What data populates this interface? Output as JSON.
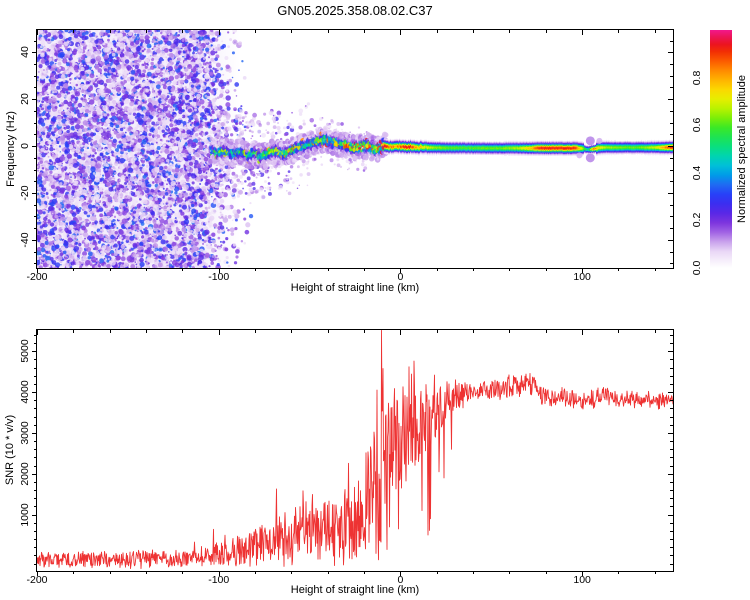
{
  "title": "GN05.2025.358.08.02.C37",
  "colors": {
    "background": "#FFFFFF",
    "axis": "#000000",
    "snr_line": "#EE3333"
  },
  "colormap_stops": [
    [
      0.0,
      "#FFFFFF"
    ],
    [
      0.03,
      "#F6EFFB"
    ],
    [
      0.07,
      "#E9D7F6"
    ],
    [
      0.11,
      "#C9A2EC"
    ],
    [
      0.15,
      "#A163E4"
    ],
    [
      0.19,
      "#7D35DE"
    ],
    [
      0.23,
      "#5A28E6"
    ],
    [
      0.27,
      "#3C2EF0"
    ],
    [
      0.31,
      "#2741F8"
    ],
    [
      0.35,
      "#1F6BF2"
    ],
    [
      0.39,
      "#009BE8"
    ],
    [
      0.43,
      "#00BFD8"
    ],
    [
      0.47,
      "#00D4B0"
    ],
    [
      0.51,
      "#0ADF7E"
    ],
    [
      0.55,
      "#1EE352"
    ],
    [
      0.59,
      "#3BE926"
    ],
    [
      0.63,
      "#7BEE08"
    ],
    [
      0.67,
      "#B9F200"
    ],
    [
      0.71,
      "#E6EE00"
    ],
    [
      0.75,
      "#FBD800"
    ],
    [
      0.79,
      "#FFB300"
    ],
    [
      0.83,
      "#FF8A00"
    ],
    [
      0.87,
      "#FB5A00"
    ],
    [
      0.91,
      "#F22E04"
    ],
    [
      0.94,
      "#EC1420"
    ],
    [
      0.97,
      "#EC1454"
    ],
    [
      1.0,
      "#F2188C"
    ]
  ],
  "chart_data": [
    {
      "type": "heatmap",
      "title": "GN05.2025.358.08.02.C37",
      "xlabel": "Height of straight line (km)",
      "ylabel": "Frequency (Hz)",
      "xlim": [
        -200,
        150
      ],
      "ylim": [
        -52,
        49.5
      ],
      "x_major_ticks": [
        -200,
        -100,
        0,
        100
      ],
      "x_minor_step": 20,
      "y_major_ticks": [
        40,
        20,
        0,
        -20,
        -40
      ],
      "y_minor_step": 5,
      "grid": false,
      "colorbar": {
        "label": "Normalized spectral amplitude",
        "tick_labels": [
          "0.0",
          "0.2",
          "0.4",
          "0.6",
          "0.8"
        ],
        "tick_values": [
          0,
          0.2,
          0.4,
          0.6,
          0.8
        ],
        "range": [
          0,
          1
        ],
        "position": "right"
      },
      "noise_region": {
        "x_range": [
          -200,
          -103
        ],
        "fade_end": -82,
        "value_range": [
          0.05,
          0.35
        ]
      },
      "ridge_comment": "signal ridge samples: [height_km, center_freq_Hz, peak_normalized_amplitude]",
      "ridge": [
        [
          -104,
          -1.5,
          0.4
        ],
        [
          -100,
          -3,
          0.5
        ],
        [
          -96,
          -2,
          0.52
        ],
        [
          -92,
          -3.5,
          0.55
        ],
        [
          -88,
          -2.5,
          0.52
        ],
        [
          -84,
          -4,
          0.55
        ],
        [
          -80,
          -3,
          0.58
        ],
        [
          -76,
          -4.5,
          0.55
        ],
        [
          -72,
          -3,
          0.6
        ],
        [
          -68,
          -2,
          0.62
        ],
        [
          -64,
          -3.5,
          0.58
        ],
        [
          -60,
          -2,
          0.68
        ],
        [
          -57,
          -1,
          0.62
        ],
        [
          -53,
          0,
          0.6
        ],
        [
          -49,
          1,
          0.64
        ],
        [
          -45,
          2.2,
          0.68
        ],
        [
          -41,
          2.6,
          0.72
        ],
        [
          -37,
          1.8,
          0.68
        ],
        [
          -33,
          0.8,
          0.7
        ],
        [
          -29,
          0,
          0.72
        ],
        [
          -25,
          -0.8,
          0.8
        ],
        [
          -21,
          -0.4,
          0.92
        ],
        [
          -18,
          0.2,
          0.8
        ],
        [
          -15,
          -0.9,
          0.86
        ],
        [
          -12,
          -1.3,
          0.78
        ],
        [
          -9,
          0.3,
          0.92
        ],
        [
          -6,
          -0.4,
          0.85
        ],
        [
          -3,
          0.1,
          0.8
        ],
        [
          0,
          -0.3,
          0.88
        ],
        [
          3,
          -0.6,
          0.94
        ],
        [
          6,
          -0.2,
          0.9
        ],
        [
          9,
          -0.5,
          0.8
        ],
        [
          13,
          -0.6,
          0.72
        ],
        [
          18,
          -0.7,
          0.66
        ],
        [
          25,
          -0.8,
          0.62
        ],
        [
          35,
          -0.8,
          0.6
        ],
        [
          45,
          -0.9,
          0.62
        ],
        [
          55,
          -0.9,
          0.63
        ],
        [
          65,
          -0.9,
          0.68
        ],
        [
          72,
          -0.9,
          0.8
        ],
        [
          76,
          -0.9,
          0.94
        ],
        [
          82,
          -0.9,
          0.94
        ],
        [
          90,
          -0.9,
          0.94
        ],
        [
          96,
          -0.9,
          0.92
        ],
        [
          100,
          -1,
          0.66
        ],
        [
          103,
          -1.6,
          0.5
        ],
        [
          106,
          -1.2,
          0.88
        ],
        [
          109,
          -0.8,
          0.72
        ],
        [
          113,
          -0.6,
          0.66
        ],
        [
          120,
          -0.6,
          0.63
        ],
        [
          130,
          -0.6,
          0.62
        ],
        [
          140,
          -0.6,
          0.68
        ],
        [
          146,
          -0.6,
          0.85
        ],
        [
          150,
          -0.6,
          0.95
        ]
      ]
    },
    {
      "type": "line",
      "xlabel": "Height of straight line (km)",
      "ylabel": "SNR (10 * v/v)",
      "xlim": [
        -200,
        150
      ],
      "ylim": [
        -380,
        5520
      ],
      "x_major_ticks": [
        -200,
        -100,
        0,
        100
      ],
      "x_minor_step": 20,
      "y_major_ticks": [
        1000,
        2000,
        3000,
        4000,
        5000
      ],
      "y_minor_step": 200,
      "grid": false,
      "color": "#EE3333",
      "profile_comment": "envelope samples: [height_km, mean, noise_halfwidth, spike_max]",
      "profile": [
        [
          -200,
          -100,
          240,
          0
        ],
        [
          -160,
          -100,
          240,
          0
        ],
        [
          -130,
          -90,
          250,
          0
        ],
        [
          -112,
          -60,
          280,
          400
        ],
        [
          -104,
          0,
          350,
          800
        ],
        [
          -97,
          80,
          420,
          1200
        ],
        [
          -90,
          150,
          500,
          1500
        ],
        [
          -83,
          220,
          560,
          1700
        ],
        [
          -76,
          300,
          620,
          1700
        ],
        [
          -70,
          350,
          680,
          1900
        ],
        [
          -63,
          420,
          750,
          2000
        ],
        [
          -56,
          520,
          850,
          2100
        ],
        [
          -50,
          600,
          950,
          2300
        ],
        [
          -44,
          650,
          1000,
          2350
        ],
        [
          -38,
          700,
          1050,
          2400
        ],
        [
          -32,
          800,
          1150,
          2500
        ],
        [
          -27,
          900,
          1250,
          2600
        ],
        [
          -22,
          1100,
          1450,
          2900
        ],
        [
          -18,
          1350,
          1700,
          3300
        ],
        [
          -14,
          1700,
          2100,
          3900
        ],
        [
          -11,
          2100,
          2500,
          5510
        ],
        [
          -8,
          2500,
          1700,
          4200
        ],
        [
          -5,
          2700,
          1500,
          4300
        ],
        [
          -2,
          2800,
          1400,
          4200
        ],
        [
          1,
          2900,
          1400,
          4300
        ],
        [
          4,
          3000,
          1500,
          4600
        ],
        [
          7,
          3050,
          1600,
          4750
        ],
        [
          10,
          3100,
          1400,
          4300
        ],
        [
          13,
          3200,
          1500,
          4200
        ],
        [
          16,
          3350,
          1400,
          4200
        ],
        [
          19,
          3500,
          1100,
          4100
        ],
        [
          23,
          3700,
          800,
          4200
        ],
        [
          27,
          3850,
          550,
          4250
        ],
        [
          32,
          3950,
          420,
          4300
        ],
        [
          38,
          4020,
          350,
          4300
        ],
        [
          45,
          4050,
          330,
          4350
        ],
        [
          52,
          4080,
          330,
          4400
        ],
        [
          58,
          4100,
          340,
          4420
        ],
        [
          64,
          4170,
          350,
          4480
        ],
        [
          70,
          4230,
          330,
          4480
        ],
        [
          74,
          4150,
          300,
          4350
        ],
        [
          78,
          3900,
          280,
          4100
        ],
        [
          83,
          3820,
          280,
          4050
        ],
        [
          88,
          3880,
          300,
          4150
        ],
        [
          93,
          3850,
          280,
          4100
        ],
        [
          98,
          3780,
          260,
          3980
        ],
        [
          103,
          3800,
          260,
          4000
        ],
        [
          108,
          3870,
          260,
          4080
        ],
        [
          112,
          3960,
          260,
          4150
        ],
        [
          116,
          3880,
          240,
          4050
        ],
        [
          122,
          3820,
          240,
          3980
        ],
        [
          128,
          3800,
          240,
          3960
        ],
        [
          134,
          3820,
          240,
          3980
        ],
        [
          140,
          3800,
          230,
          3950
        ],
        [
          146,
          3780,
          230,
          3930
        ],
        [
          150,
          3770,
          230,
          3920
        ]
      ],
      "forced_spikes": [
        [
          -10.3,
          5510
        ],
        [
          7.5,
          4760
        ],
        [
          -13,
          4050
        ],
        [
          4.8,
          4620
        ],
        [
          16.5,
          900
        ],
        [
          12,
          1100
        ],
        [
          -6,
          700
        ],
        [
          -1,
          650
        ],
        [
          24,
          1900
        ],
        [
          28,
          2600
        ]
      ]
    }
  ]
}
